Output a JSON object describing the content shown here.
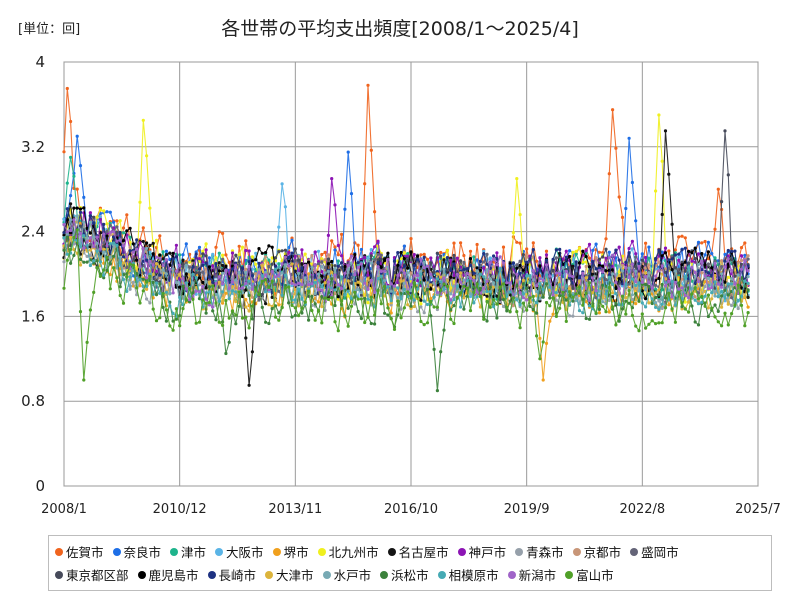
{
  "unit_label": "[単位：回]",
  "chart_data": {
    "type": "line",
    "title": "各世帯の平均支出頻度[2008/1～2025/4]",
    "xlabel": "",
    "ylabel": "",
    "x_range": [
      "2008/1",
      "2025/7"
    ],
    "x_ticks": [
      "2008/1",
      "2010/12",
      "2013/11",
      "2016/10",
      "2019/9",
      "2022/8",
      "2025/7"
    ],
    "ylim": [
      0,
      4
    ],
    "y_ticks": [
      "0",
      "0.8",
      "1.6",
      "2.4",
      "3.2",
      "4"
    ],
    "grid": true,
    "legend_position": "bottom",
    "series": [
      {
        "name": "佐賀市",
        "color": "#f0641e",
        "base": 2.1,
        "amp": 0.38,
        "peaks": [
          [
            "2008/2",
            3.75
          ],
          [
            "2015/9",
            3.78
          ],
          [
            "2021/11",
            3.55
          ],
          [
            "2024/7",
            2.8
          ]
        ]
      },
      {
        "name": "奈良市",
        "color": "#1e6ee6",
        "base": 2.05,
        "amp": 0.32,
        "peaks": [
          [
            "2008/5",
            3.3
          ],
          [
            "2015/3",
            3.15
          ],
          [
            "2022/4",
            3.28
          ]
        ]
      },
      {
        "name": "津市",
        "color": "#1eb48c",
        "base": 2.0,
        "amp": 0.3,
        "peaks": [
          [
            "2008/3",
            3.1
          ]
        ]
      },
      {
        "name": "大阪市",
        "color": "#5ab4e6",
        "base": 2.0,
        "amp": 0.3,
        "peaks": [
          [
            "2013/7",
            2.85
          ]
        ]
      },
      {
        "name": "堺市",
        "color": "#f0a01e",
        "base": 1.85,
        "amp": 0.3,
        "peaks": [
          [
            "2020/2",
            1.0
          ]
        ]
      },
      {
        "name": "北九州市",
        "color": "#f0f01e",
        "base": 2.0,
        "amp": 0.35,
        "peaks": [
          [
            "2010/1",
            3.45
          ],
          [
            "2019/6",
            2.9
          ],
          [
            "2023/1",
            3.5
          ]
        ]
      },
      {
        "name": "名古屋市",
        "color": "#141414",
        "base": 1.95,
        "amp": 0.3,
        "peaks": [
          [
            "2012/9",
            0.95
          ],
          [
            "2023/3",
            3.35
          ]
        ]
      },
      {
        "name": "神戸市",
        "color": "#8c14b4",
        "base": 2.05,
        "amp": 0.3,
        "peaks": [
          [
            "2014/10",
            2.9
          ]
        ]
      },
      {
        "name": "青森市",
        "color": "#96a0aa",
        "base": 1.85,
        "amp": 0.28,
        "peaks": []
      },
      {
        "name": "京都市",
        "color": "#c89678",
        "base": 1.95,
        "amp": 0.28,
        "peaks": []
      },
      {
        "name": "盛岡市",
        "color": "#646478",
        "base": 1.95,
        "amp": 0.28,
        "peaks": []
      },
      {
        "name": "東京都区部",
        "color": "#464a5a",
        "base": 2.0,
        "amp": 0.3,
        "peaks": [
          [
            "2024/9",
            3.35
          ]
        ]
      },
      {
        "name": "鹿児島市",
        "color": "#000000",
        "base": 2.0,
        "amp": 0.3,
        "peaks": []
      },
      {
        "name": "長崎市",
        "color": "#1e3282",
        "base": 2.0,
        "amp": 0.28,
        "peaks": []
      },
      {
        "name": "大津市",
        "color": "#dcb43c",
        "base": 1.85,
        "amp": 0.28,
        "peaks": []
      },
      {
        "name": "水戸市",
        "color": "#78aab4",
        "base": 1.9,
        "amp": 0.28,
        "peaks": []
      },
      {
        "name": "浜松市",
        "color": "#3c823c",
        "base": 1.75,
        "amp": 0.3,
        "peaks": [
          [
            "2017/6",
            0.9
          ],
          [
            "2012/2",
            1.25
          ]
        ]
      },
      {
        "name": "相模原市",
        "color": "#46aab4",
        "base": 1.85,
        "amp": 0.28,
        "peaks": []
      },
      {
        "name": "新潟市",
        "color": "#a064c8",
        "base": 1.95,
        "amp": 0.28,
        "peaks": []
      },
      {
        "name": "富山市",
        "color": "#50a028",
        "base": 1.7,
        "amp": 0.3,
        "peaks": [
          [
            "2008/7",
            1.0
          ],
          [
            "2020/1",
            1.2
          ]
        ]
      }
    ]
  }
}
